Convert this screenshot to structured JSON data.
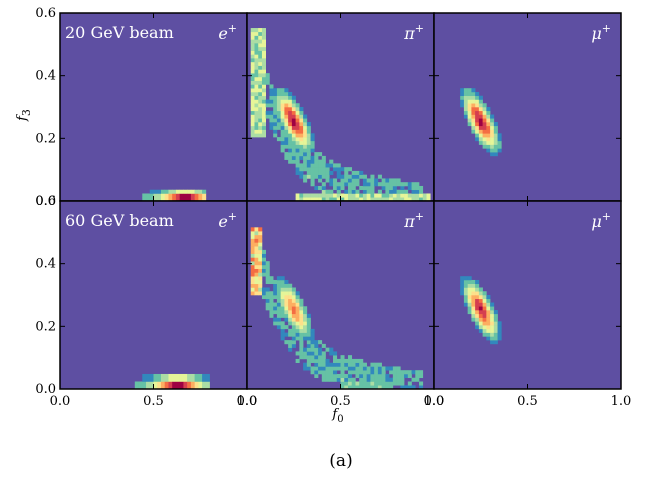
{
  "chart_data": {
    "type": "heatmap",
    "colormap": [
      "#5e4fa2",
      "#3288bd",
      "#66c2a5",
      "#abdda4",
      "#e6f598",
      "#fee08b",
      "#fdae61",
      "#f46d43",
      "#d53e4f",
      "#9e0142"
    ],
    "background_color": "#5e4fa2",
    "xlabel_main": "f",
    "xlabel_sub": "0",
    "ylabel_main": "f",
    "ylabel_sub": "3",
    "xlim": [
      0.0,
      1.0
    ],
    "ylim": [
      0.0,
      0.6
    ],
    "xticks": [
      "0.0",
      "0.5",
      "1.0"
    ],
    "xticks_shared": [
      "0.0",
      "0.5",
      "1.0"
    ],
    "yticks": [
      "0.0",
      "0.2",
      "0.4",
      "0.6"
    ],
    "rows": [
      {
        "beam_label": "20 GeV beam",
        "panels": [
          {
            "particle_base": "e",
            "particle_sup": "+",
            "clusters": [
              {
                "type": "band",
                "x": [
                  0.45,
                  0.78
                ],
                "y": [
                  0.005,
                  0.04
                ],
                "peak": [
                  0.67,
                  0.015
                ],
                "intensity": 1.0
              }
            ]
          },
          {
            "particle_base": "π",
            "particle_sup": "+",
            "clusters": [
              {
                "type": "blob",
                "center": [
                  0.25,
                  0.255
                ],
                "intensity": 1.0
              },
              {
                "type": "stripe_left",
                "x": [
                  0.02,
                  0.1
                ],
                "y": [
                  0.2,
                  0.55
                ],
                "intensity": 0.6
              },
              {
                "type": "curve",
                "intensity": 0.35
              },
              {
                "type": "bottom_band",
                "x": [
                  0.25,
                  0.98
                ],
                "y": [
                  0.0,
                  0.02
                ],
                "intensity": 0.5
              }
            ]
          },
          {
            "particle_base": "μ",
            "particle_sup": "+",
            "clusters": [
              {
                "type": "blob",
                "center": [
                  0.25,
                  0.255
                ],
                "intensity": 1.0
              }
            ]
          }
        ]
      },
      {
        "beam_label": "60 GeV beam",
        "panels": [
          {
            "particle_base": "e",
            "particle_sup": "+",
            "clusters": [
              {
                "type": "band",
                "x": [
                  0.4,
                  0.8
                ],
                "y": [
                  0.005,
                  0.05
                ],
                "peak": [
                  0.63,
                  0.015
                ],
                "intensity": 1.0
              }
            ]
          },
          {
            "particle_base": "π",
            "particle_sup": "+",
            "clusters": [
              {
                "type": "blob",
                "center": [
                  0.25,
                  0.255
                ],
                "intensity": 0.75
              },
              {
                "type": "stripe_left",
                "x": [
                  0.02,
                  0.08
                ],
                "y": [
                  0.3,
                  0.52
                ],
                "intensity": 0.95
              },
              {
                "type": "curve",
                "intensity": 0.35
              },
              {
                "type": "bottom_band",
                "x": [
                  0.5,
                  0.75
                ],
                "y": [
                  0.0,
                  0.02
                ],
                "intensity": 0.35
              }
            ]
          },
          {
            "particle_base": "μ",
            "particle_sup": "+",
            "clusters": [
              {
                "type": "blob",
                "center": [
                  0.25,
                  0.255
                ],
                "intensity": 0.95
              }
            ]
          }
        ]
      }
    ]
  },
  "caption": "(a)"
}
